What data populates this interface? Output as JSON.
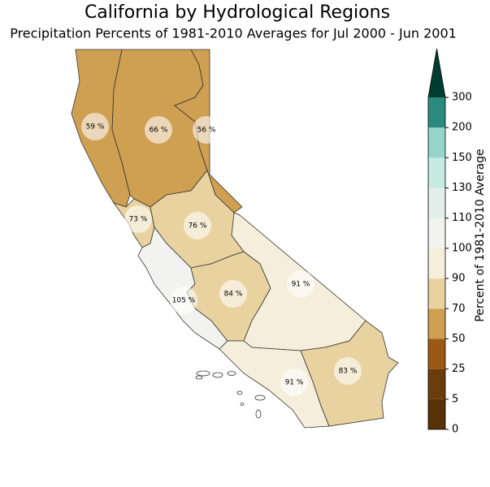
{
  "map": {
    "title": "California by Hydrological Regions",
    "subtitle": "Precipitation Percents of 1981-2010 Averages for Jul 2000 - Jun 2001",
    "regions": {
      "values": [
        59,
        66,
        56,
        73,
        76,
        105,
        84,
        91,
        91,
        83
      ],
      "value_labels": [
        "59 %",
        "66 %",
        "56 %",
        "73 %",
        "76 %",
        "105 %",
        "84 %",
        "91 %",
        "91 %",
        "83 %"
      ]
    },
    "colorbar": {
      "label": "Percent of 1981-2010 Average",
      "ticks": [
        0,
        5,
        25,
        50,
        70,
        90,
        100,
        110,
        130,
        150,
        200,
        300
      ],
      "colors": [
        "#573206",
        "#6a3d0c",
        "#9a5a13",
        "#cf9f52",
        "#e8d29f",
        "#f5eedb",
        "#f2f3f1",
        "#e3eeeb",
        "#c6ebe3",
        "#95d5ca",
        "#2a8a7e",
        "#003c30"
      ]
    }
  }
}
